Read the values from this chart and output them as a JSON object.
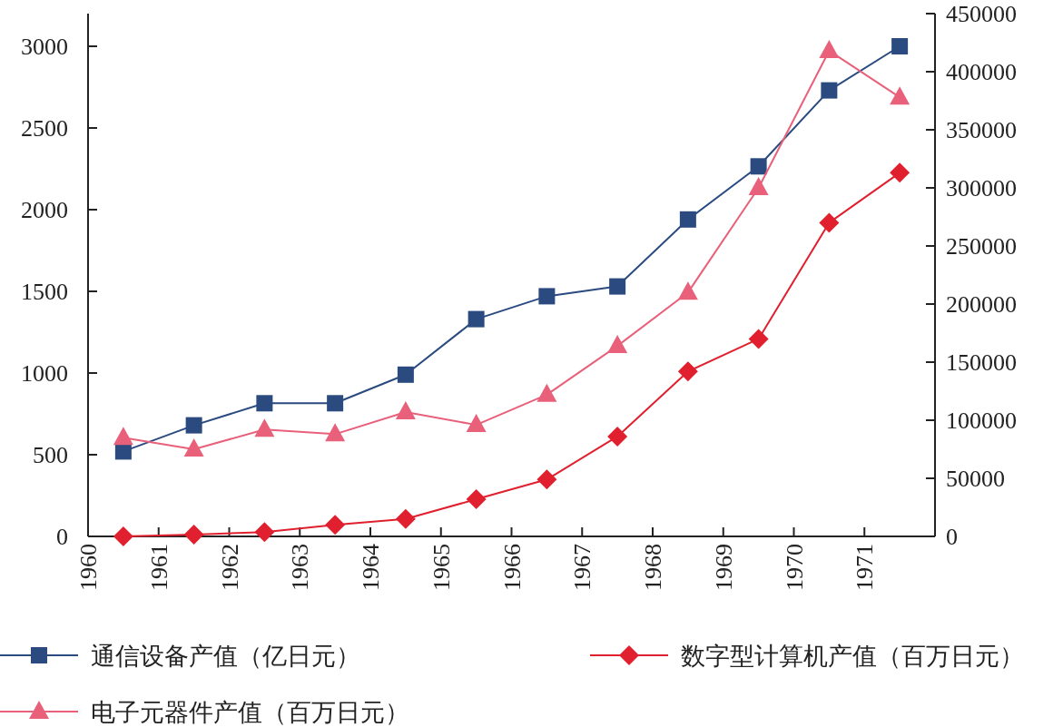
{
  "chart_data": {
    "type": "line",
    "x": [
      1960.5,
      1961.5,
      1962.5,
      1963.5,
      1964.5,
      1965.5,
      1966.5,
      1967.5,
      1968.5,
      1969.5,
      1970.5,
      1971.5
    ],
    "xlim": [
      1960,
      1972
    ],
    "xticks": [
      1960,
      1961,
      1962,
      1963,
      1964,
      1965,
      1966,
      1967,
      1968,
      1969,
      1970,
      1971
    ],
    "ylim": [
      0,
      3200
    ],
    "yticks": [
      0,
      500,
      1000,
      1500,
      2000,
      2500,
      3000
    ],
    "y2lim": [
      0,
      450000
    ],
    "y2ticks": [
      0,
      50000,
      100000,
      150000,
      200000,
      250000,
      300000,
      350000,
      400000,
      450000
    ],
    "grid": false,
    "legend": "bottom",
    "line_style": "solid",
    "series": [
      {
        "name": "通信设备产值（亿日元）",
        "color": "#2a4a80",
        "marker": "square",
        "values": [
          520,
          680,
          815,
          815,
          990,
          1330,
          1470,
          1530,
          1940,
          2265,
          2730,
          3000
        ]
      },
      {
        "name": "数字型计算机产值（百万日元）",
        "color": "#e0202e",
        "marker": "diamond",
        "axis": "y2",
        "values": [
          0,
          1500,
          3700,
          10000,
          15000,
          32000,
          49000,
          86000,
          142000,
          170000,
          270000,
          313000
        ]
      },
      {
        "name": "电子元器件产值（百万日元）",
        "color": "#e8607a",
        "marker": "triangle",
        "axis": "y2",
        "values": [
          85000,
          75000,
          92000,
          88000,
          107000,
          96000,
          122000,
          164000,
          210000,
          300000,
          418000,
          378000
        ]
      }
    ]
  }
}
